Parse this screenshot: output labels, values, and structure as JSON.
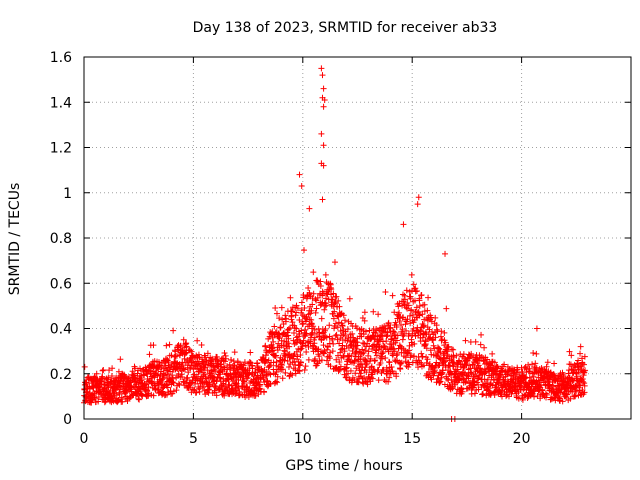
{
  "chart_data": {
    "type": "scatter",
    "title": "Day 138 of 2023, SRMTID for receiver ab33",
    "xlabel": "GPS time / hours",
    "ylabel": "SRMTID / TECUs",
    "xlim": [
      0,
      25
    ],
    "ylim": [
      0,
      1.6
    ],
    "x_ticks": [
      0,
      5,
      10,
      15,
      20
    ],
    "x_tick_labels": [
      "0",
      "5",
      "10",
      "15",
      "20"
    ],
    "y_ticks": [
      0,
      0.2,
      0.4,
      0.6,
      0.8,
      1,
      1.2,
      1.4,
      1.6
    ],
    "y_tick_labels": [
      "0",
      "0.2",
      "0.4",
      "0.6",
      "0.8",
      "1",
      "1.2",
      "1.4",
      "1.6"
    ],
    "grid": true,
    "marker": "plus",
    "color": "#ff0000",
    "series": [
      {
        "name": "SRMTID",
        "x_range": [
          0.0,
          22.9
        ],
        "approx_points": 2800,
        "envelope_hours": [
          0,
          1,
          2,
          3,
          4,
          4.5,
          5,
          6,
          7,
          8,
          8.5,
          9,
          9.5,
          10,
          10.5,
          11,
          11.5,
          12,
          13,
          14,
          14.5,
          15,
          15.5,
          16,
          16.5,
          17,
          18,
          19,
          20,
          20.5,
          21,
          22,
          22.9
        ],
        "envelope_median": [
          0.13,
          0.13,
          0.14,
          0.17,
          0.2,
          0.25,
          0.2,
          0.19,
          0.18,
          0.17,
          0.27,
          0.3,
          0.35,
          0.38,
          0.42,
          0.45,
          0.38,
          0.3,
          0.27,
          0.3,
          0.38,
          0.42,
          0.36,
          0.3,
          0.27,
          0.2,
          0.2,
          0.17,
          0.15,
          0.18,
          0.15,
          0.14,
          0.2
        ],
        "notable_points": [
          {
            "x": 9.85,
            "y": 1.08
          },
          {
            "x": 9.95,
            "y": 1.03
          },
          {
            "x": 10.3,
            "y": 0.93
          },
          {
            "x": 10.85,
            "y": 1.55
          },
          {
            "x": 10.9,
            "y": 1.52
          },
          {
            "x": 10.95,
            "y": 1.46
          },
          {
            "x": 10.9,
            "y": 1.42
          },
          {
            "x": 11.0,
            "y": 1.41
          },
          {
            "x": 10.95,
            "y": 1.38
          },
          {
            "x": 10.85,
            "y": 1.26
          },
          {
            "x": 10.95,
            "y": 1.21
          },
          {
            "x": 10.85,
            "y": 1.13
          },
          {
            "x": 10.95,
            "y": 1.12
          },
          {
            "x": 10.9,
            "y": 0.97
          },
          {
            "x": 15.3,
            "y": 0.98
          },
          {
            "x": 15.25,
            "y": 0.95
          },
          {
            "x": 14.6,
            "y": 0.86
          },
          {
            "x": 16.5,
            "y": 0.73
          },
          {
            "x": 16.8,
            "y": 0.0
          },
          {
            "x": 16.95,
            "y": 0.0
          },
          {
            "x": 20.7,
            "y": 0.4
          },
          {
            "x": 22.7,
            "y": 0.32
          }
        ]
      }
    ]
  }
}
